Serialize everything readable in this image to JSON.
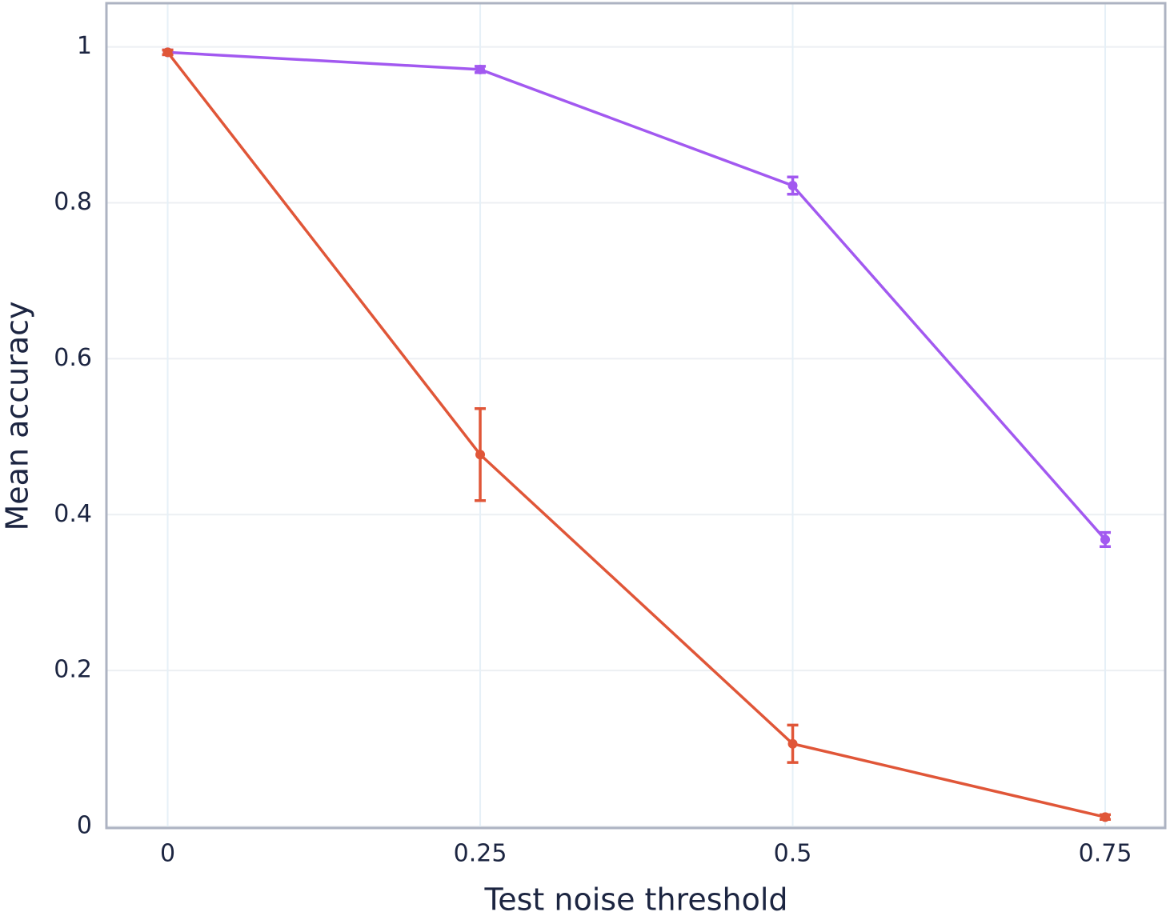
{
  "chart_data": {
    "type": "line",
    "x_label": "Test noise threshold",
    "y_label": "Mean accuracy",
    "x": [
      0,
      0.25,
      0.5,
      0.75
    ],
    "series": [
      {
        "color": "#a259f0",
        "values": [
          0.993,
          0.971,
          0.822,
          0.368
        ],
        "errors": [
          0.003,
          0.004,
          0.011,
          0.009
        ]
      },
      {
        "color": "#e05638",
        "values": [
          0.993,
          0.477,
          0.106,
          0.012
        ],
        "errors": [
          0.003,
          0.059,
          0.024,
          0.003
        ]
      }
    ],
    "xlim": [
      -0.049,
      0.798
    ],
    "ylim": [
      -0.002,
      1.056
    ],
    "xticks": [
      0,
      0.25,
      0.5,
      0.75
    ],
    "yticks": [
      0,
      0.2,
      0.4,
      0.6,
      0.8,
      1
    ],
    "grid": true
  }
}
